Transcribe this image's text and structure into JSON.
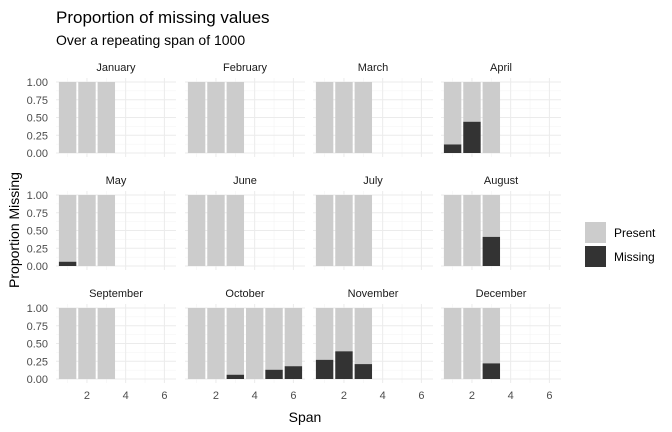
{
  "chart_data": {
    "type": "bar",
    "stacked": true,
    "faceted": true,
    "title": "Proportion of missing values",
    "subtitle": "Over a repeating span of 1000",
    "xlabel": "Span",
    "ylabel": "Proportion Missing",
    "xlim": [
      0.4,
      6.6
    ],
    "ylim": [
      0,
      1
    ],
    "x_ticks": [
      2,
      4,
      6
    ],
    "y_ticks": [
      0,
      0.25,
      0.5,
      0.75,
      1.0
    ],
    "y_tick_labels": [
      "0.00",
      "0.25",
      "0.50",
      "0.75",
      "1.00"
    ],
    "legend": {
      "position": "right",
      "entries": [
        {
          "label": "Present",
          "color": "#cccccc"
        },
        {
          "label": "Missing",
          "color": "#333333"
        }
      ]
    },
    "colors": {
      "present": "#cccccc",
      "missing": "#333333"
    },
    "facets": [
      {
        "label": "January",
        "missing": [
          0,
          0,
          0
        ]
      },
      {
        "label": "February",
        "missing": [
          0,
          0,
          0
        ]
      },
      {
        "label": "March",
        "missing": [
          0,
          0,
          0
        ]
      },
      {
        "label": "April",
        "missing": [
          0.12,
          0.44,
          0
        ]
      },
      {
        "label": "May",
        "missing": [
          0.06,
          0,
          0
        ]
      },
      {
        "label": "June",
        "missing": [
          0,
          0,
          0
        ]
      },
      {
        "label": "July",
        "missing": [
          0,
          0,
          0
        ]
      },
      {
        "label": "August",
        "missing": [
          0,
          0,
          0.41
        ]
      },
      {
        "label": "September",
        "missing": [
          0,
          0,
          0
        ]
      },
      {
        "label": "October",
        "missing": [
          0,
          0,
          0.06,
          0,
          0.13,
          0.18
        ]
      },
      {
        "label": "November",
        "missing": [
          0.27,
          0.39,
          0.21
        ]
      },
      {
        "label": "December",
        "missing": [
          0,
          0,
          0.22
        ]
      }
    ]
  }
}
